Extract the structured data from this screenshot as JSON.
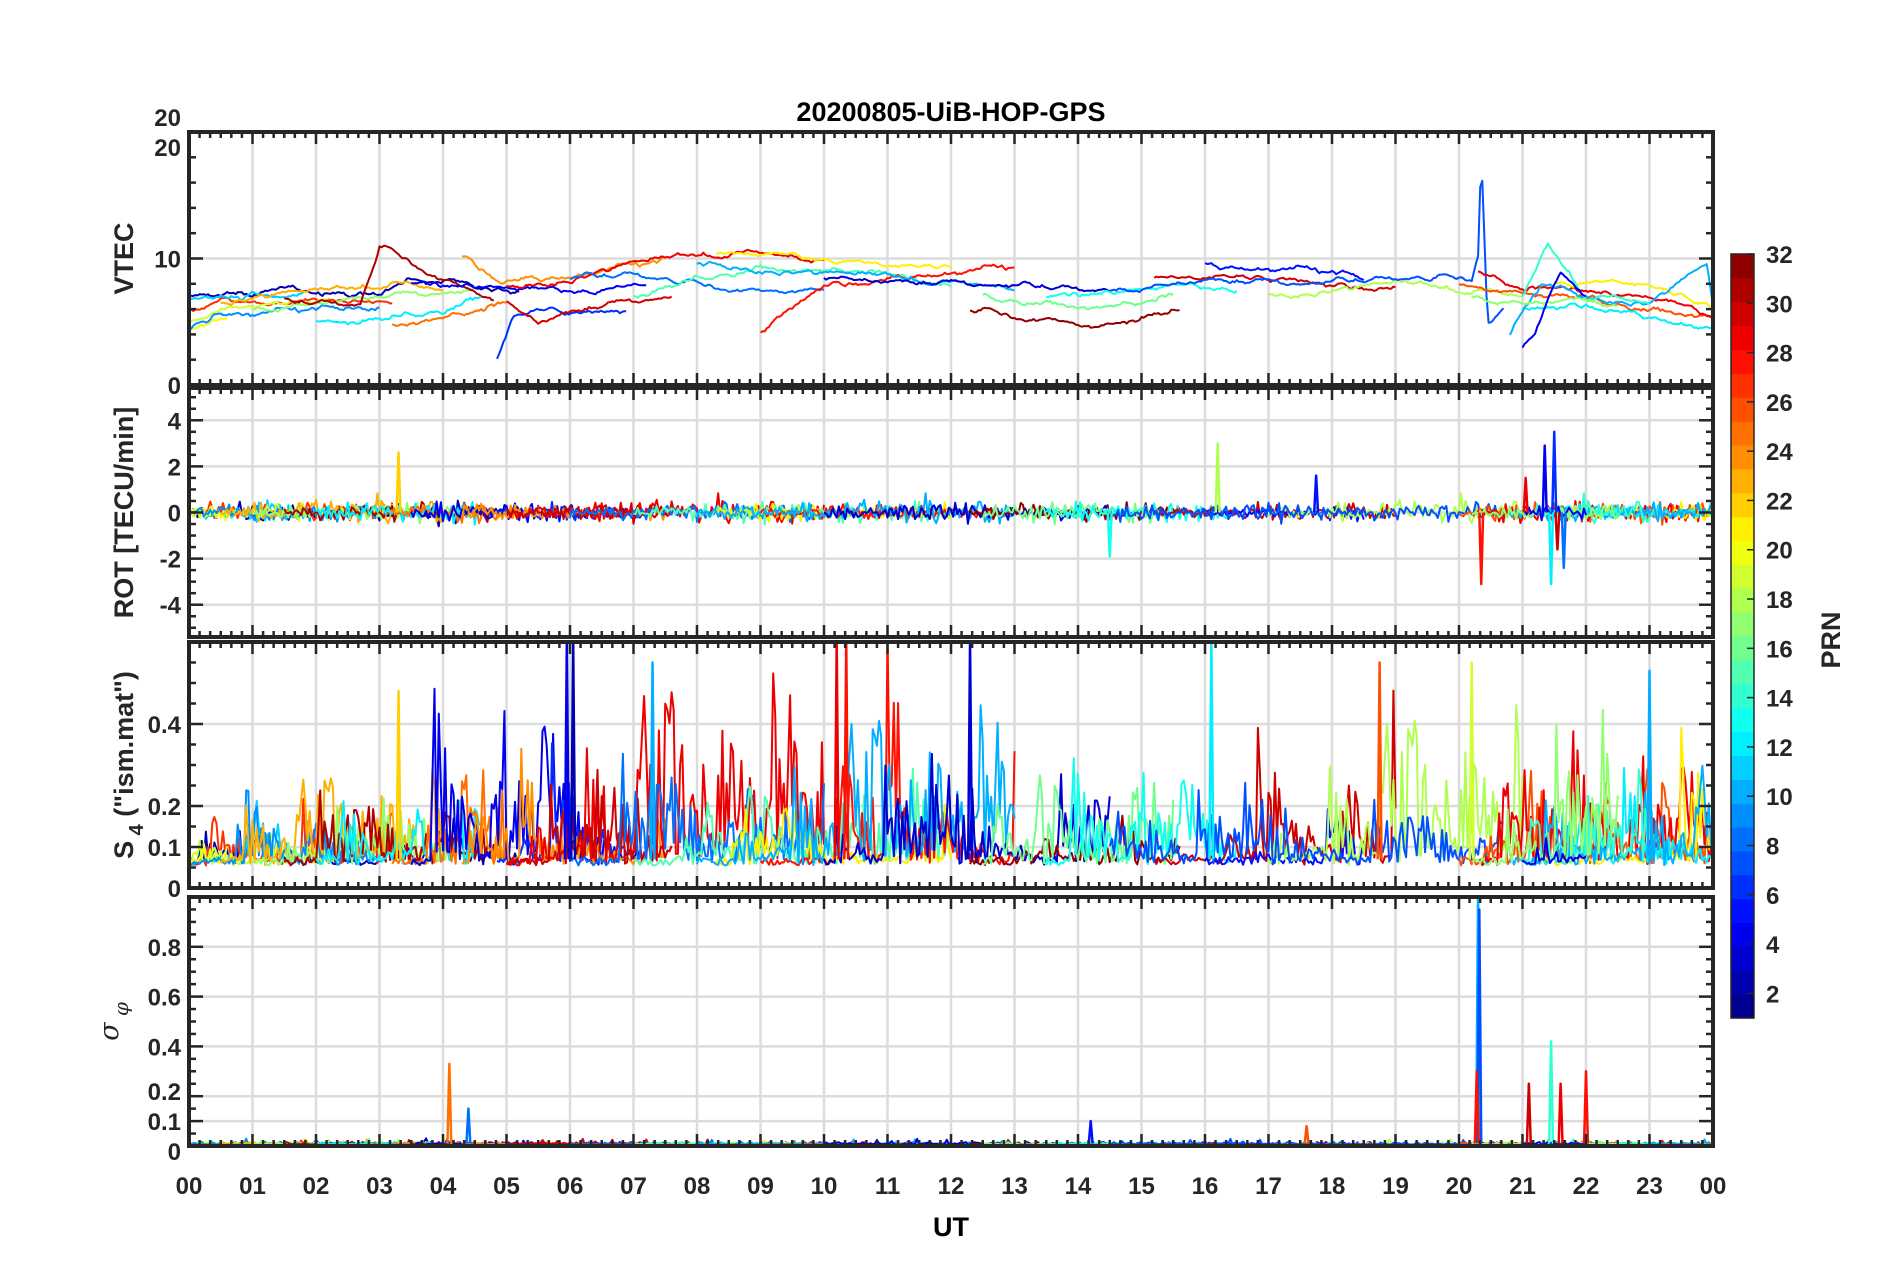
{
  "chart_data": {
    "type": "line",
    "title": "20200805-UiB-HOP-GPS",
    "xlabel": "UT",
    "xlim": [
      0,
      24
    ],
    "x_tick_labels": [
      "00",
      "01",
      "02",
      "03",
      "04",
      "05",
      "06",
      "07",
      "08",
      "09",
      "10",
      "11",
      "12",
      "13",
      "14",
      "15",
      "16",
      "17",
      "18",
      "19",
      "20",
      "21",
      "22",
      "23",
      "00"
    ],
    "grid": true,
    "panels": [
      {
        "id": "vtec",
        "ylabel": "VTEC",
        "ylim": [
          0,
          20
        ],
        "yticks": [
          0,
          10,
          20
        ],
        "ytick_labels": [
          "0",
          "10",
          "20"
        ],
        "yminor": 2
      },
      {
        "id": "rot",
        "ylabel": "ROT [TECU/min]",
        "ylim": [
          -5.4,
          5.4
        ],
        "yticks": [
          -4,
          -2,
          0,
          2,
          4
        ],
        "ytick_labels": [
          "-4",
          "-2",
          "0",
          "2",
          "4"
        ],
        "yminor": 0.5
      },
      {
        "id": "s4",
        "ylabel_main": "S",
        "ylabel_sub": "4",
        "ylabel_rest": " (\"ism.mat\")",
        "ylim": [
          0,
          0.6
        ],
        "yticks": [
          0,
          0.1,
          0.2,
          0.4
        ],
        "ytick_labels": [
          "0",
          "0.1",
          "0.2",
          "0.4"
        ],
        "yminor": 0.05
      },
      {
        "id": "sigma",
        "ylabel_main": "σ",
        "ylabel_sub": "φ",
        "ylim": [
          0,
          1
        ],
        "yticks": [
          0,
          0.1,
          0.2,
          0.4,
          0.6,
          0.8
        ],
        "ytick_labels": [
          "0",
          "0.1",
          "0.2",
          "0.4",
          "0.6",
          "0.8"
        ],
        "yminor": 0.05
      }
    ],
    "colorbar": {
      "label": "PRN",
      "colormap": "jet",
      "clim": [
        1,
        32
      ],
      "ticks": [
        2,
        4,
        6,
        8,
        10,
        12,
        14,
        16,
        18,
        20,
        22,
        24,
        26,
        28,
        30,
        32
      ],
      "tick_labels": [
        "2",
        "4",
        "6",
        "8",
        "10",
        "12",
        "14",
        "16",
        "18",
        "20",
        "22",
        "24",
        "26",
        "28",
        "30",
        "32"
      ]
    },
    "series_note": "Each arc is one satellite pass (PRN); vtec knots are [UT hour, TECU]",
    "arcs": [
      {
        "prn": 2,
        "vtec": [
          [
            0,
            7
          ],
          [
            1,
            7.2
          ],
          [
            2,
            7.4
          ],
          [
            3,
            7.3
          ],
          [
            3.5,
            8
          ],
          [
            4.2,
            8.2
          ],
          [
            5.2,
            7.5
          ]
        ],
        "s4_peak": 0.15
      },
      {
        "prn": 27,
        "vtec": [
          [
            0,
            5.8
          ],
          [
            0.5,
            6.6
          ],
          [
            1,
            6.2
          ],
          [
            2,
            6.8
          ],
          [
            3.2,
            6.8
          ]
        ],
        "s4_peak": 0.2
      },
      {
        "prn": 11,
        "vtec": [
          [
            0,
            6.8
          ],
          [
            0.8,
            7
          ],
          [
            1.8,
            7.3
          ]
        ],
        "s4_peak": 0.15
      },
      {
        "prn": 19,
        "vtec": [
          [
            0,
            5
          ],
          [
            0.6,
            6
          ],
          [
            1.4,
            6.3
          ],
          [
            2.2,
            6.5
          ]
        ],
        "s4_peak": 0.12
      },
      {
        "prn": 20,
        "vtec": [
          [
            0,
            4.5
          ],
          [
            0.6,
            5.5
          ]
        ],
        "s4_peak": 0.12
      },
      {
        "prn": 9,
        "vtec": [
          [
            0,
            4.5
          ],
          [
            0.4,
            5.3
          ],
          [
            1.5,
            5.8
          ],
          [
            3,
            6.3
          ]
        ],
        "s4_peak": 0.2
      },
      {
        "prn": 23,
        "vtec": [
          [
            0.5,
            6.5
          ],
          [
            1.5,
            7.2
          ],
          [
            2.5,
            7.5
          ],
          [
            3.2,
            8
          ],
          [
            4,
            7.5
          ]
        ],
        "s4_peak": 0.3
      },
      {
        "prn": 17,
        "vtec": [
          [
            1,
            6
          ],
          [
            2,
            6.5
          ],
          [
            3,
            7
          ],
          [
            3.8,
            7.2
          ],
          [
            4.5,
            7.5
          ]
        ],
        "s4_peak": 0.2
      },
      {
        "prn": 31,
        "vtec": [
          [
            1.5,
            6.8
          ],
          [
            2.7,
            6.4
          ],
          [
            3,
            11
          ],
          [
            3.5,
            9.8
          ],
          [
            4,
            8.4
          ],
          [
            4.8,
            7
          ]
        ],
        "s4_peak": 0.3
      },
      {
        "prn": 12,
        "vtec": [
          [
            2,
            5
          ],
          [
            3,
            5.3
          ],
          [
            4,
            6
          ],
          [
            4.6,
            7
          ]
        ],
        "s4_peak": 0.2
      },
      {
        "prn": 25,
        "vtec": [
          [
            3.2,
            4.8
          ],
          [
            3.8,
            5.2
          ],
          [
            4.5,
            5.8
          ],
          [
            5,
            6.4
          ]
        ],
        "s4_peak": 0.35
      },
      {
        "prn": 4,
        "vtec": [
          [
            3.5,
            8
          ],
          [
            4.5,
            8
          ],
          [
            5.5,
            7.5
          ],
          [
            6.3,
            7.6
          ],
          [
            7.2,
            8.3
          ]
        ],
        "s4_peak": 0.5
      },
      {
        "prn": 6,
        "vtec": [
          [
            4.85,
            2
          ],
          [
            5.1,
            5.4
          ],
          [
            5.6,
            6
          ],
          [
            6.1,
            5.5
          ],
          [
            6.9,
            6
          ]
        ],
        "s4_peak": 0.4
      },
      {
        "prn": 24,
        "vtec": [
          [
            4.3,
            10.2
          ],
          [
            4.9,
            8.4
          ],
          [
            5.8,
            8.6
          ],
          [
            6.8,
            9.3
          ],
          [
            7.5,
            9.8
          ]
        ],
        "s4_peak": 0.3
      },
      {
        "prn": 29,
        "vtec": [
          [
            5,
            7.8
          ],
          [
            6,
            8.4
          ],
          [
            7,
            9.6
          ],
          [
            8,
            10.2
          ],
          [
            9,
            10.4
          ],
          [
            10,
            10
          ]
        ],
        "s4_peak": 0.6
      },
      {
        "prn": 30,
        "vtec": [
          [
            5,
            6.5
          ],
          [
            5.5,
            5
          ],
          [
            6.2,
            6
          ],
          [
            7,
            6.6
          ],
          [
            7.6,
            7
          ]
        ],
        "s4_peak": 0.3
      },
      {
        "prn": 8,
        "vtec": [
          [
            6,
            8.5
          ],
          [
            7,
            8.8
          ],
          [
            8,
            8
          ],
          [
            9,
            7.5
          ],
          [
            10,
            7.8
          ]
        ],
        "s4_peak": 0.45
      },
      {
        "prn": 15,
        "vtec": [
          [
            7,
            7
          ],
          [
            8,
            8.5
          ],
          [
            9,
            9.3
          ],
          [
            10.5,
            9
          ],
          [
            12,
            8
          ]
        ],
        "s4_peak": 0.25
      },
      {
        "prn": 21,
        "vtec": [
          [
            8.3,
            10.5
          ],
          [
            9.5,
            10.2
          ],
          [
            10.5,
            10
          ],
          [
            11.3,
            9.6
          ],
          [
            12,
            9.2
          ]
        ],
        "s4_peak": 0.2
      },
      {
        "prn": 28,
        "vtec": [
          [
            9,
            4.2
          ],
          [
            9.5,
            6
          ],
          [
            10,
            8
          ],
          [
            11,
            8.5
          ],
          [
            12,
            9
          ],
          [
            13,
            9.3
          ]
        ],
        "s4_peak": 0.6
      },
      {
        "prn": 10,
        "vtec": [
          [
            8,
            9.5
          ],
          [
            9.5,
            9
          ],
          [
            11,
            8.5
          ],
          [
            12,
            8
          ],
          [
            13,
            7.8
          ]
        ],
        "s4_peak": 0.5
      },
      {
        "prn": 3,
        "vtec": [
          [
            10,
            8.5
          ],
          [
            11,
            8.2
          ],
          [
            12,
            8
          ],
          [
            13.5,
            7.8
          ],
          [
            14.5,
            7.5
          ]
        ],
        "s4_peak": 0.35
      },
      {
        "prn": 32,
        "vtec": [
          [
            12.3,
            6
          ],
          [
            13,
            5.5
          ],
          [
            14,
            5
          ],
          [
            14.3,
            4.8
          ],
          [
            15,
            5.5
          ],
          [
            15.6,
            6
          ]
        ],
        "s4_peak": 0.15
      },
      {
        "prn": 16,
        "vtec": [
          [
            12.5,
            7
          ],
          [
            13.5,
            6.5
          ],
          [
            14.3,
            6.2
          ],
          [
            15,
            6.5
          ],
          [
            15.5,
            7
          ]
        ],
        "s4_peak": 0.3
      },
      {
        "prn": 13,
        "vtec": [
          [
            13.5,
            7
          ],
          [
            14.5,
            7.5
          ],
          [
            15.5,
            7.8
          ],
          [
            16.5,
            7.8
          ]
        ],
        "s4_peak": 0.3
      },
      {
        "prn": 30,
        "vtec": [
          [
            15.2,
            8.5
          ],
          [
            16.2,
            8.8
          ],
          [
            17,
            8.3
          ],
          [
            18,
            8
          ],
          [
            19,
            7.8
          ]
        ],
        "s4_peak": 0.45
      },
      {
        "prn": 5,
        "vtec": [
          [
            16,
            9.5
          ],
          [
            17,
            9.3
          ],
          [
            17.8,
            9
          ],
          [
            18.5,
            8.5
          ]
        ],
        "s4_peak": 0.3
      },
      {
        "prn": 18,
        "vtec": [
          [
            17,
            7
          ],
          [
            18,
            7.5
          ],
          [
            19,
            8
          ],
          [
            20,
            7.5
          ],
          [
            21,
            7
          ]
        ],
        "s4_peak": 0.5
      },
      {
        "prn": 7,
        "vtec": [
          [
            14.5,
            7.5
          ],
          [
            16,
            8.3
          ],
          [
            17.5,
            8
          ],
          [
            19,
            8.5
          ],
          [
            20.2,
            8.5
          ],
          [
            20.3,
            10.5
          ],
          [
            20.35,
            18.8
          ],
          [
            20.45,
            5
          ],
          [
            20.7,
            6
          ]
        ],
        "s4_peak": 0.25
      },
      {
        "prn": 26,
        "vtec": [
          [
            20,
            8
          ],
          [
            21,
            7.5
          ],
          [
            22,
            7
          ],
          [
            23,
            6
          ],
          [
            24,
            5.5
          ]
        ],
        "s4_peak": 0.3
      },
      {
        "prn": 29,
        "vtec": [
          [
            20.3,
            9
          ],
          [
            21,
            7.5
          ],
          [
            22,
            7.6
          ],
          [
            23,
            7
          ],
          [
            24,
            5.5
          ]
        ],
        "s4_peak": 0.35
      },
      {
        "prn": 21,
        "vtec": [
          [
            21.5,
            8
          ],
          [
            22.5,
            8.5
          ],
          [
            23,
            8
          ],
          [
            24,
            6
          ]
        ],
        "s4_peak": 0.45
      },
      {
        "prn": 12,
        "vtec": [
          [
            21,
            6
          ],
          [
            22,
            6.5
          ],
          [
            23,
            5.5
          ],
          [
            24,
            4.5
          ]
        ],
        "s4_peak": 0.25
      },
      {
        "prn": 10,
        "vtec": [
          [
            20.8,
            4
          ],
          [
            21.3,
            8
          ],
          [
            22,
            7
          ],
          [
            23,
            6.5
          ],
          [
            23.9,
            9.5
          ],
          [
            24,
            6
          ]
        ],
        "s4_peak": 0.35
      },
      {
        "prn": 14,
        "vtec": [
          [
            21,
            7
          ],
          [
            21.4,
            11
          ],
          [
            22,
            7
          ],
          [
            23,
            6.5
          ]
        ],
        "s4_peak": 0.3
      },
      {
        "prn": 17,
        "vtec": [
          [
            20.2,
            7
          ],
          [
            21,
            6.5
          ],
          [
            22,
            6.8
          ],
          [
            22.5,
            6
          ]
        ],
        "s4_peak": 0.5
      },
      {
        "prn": 4,
        "vtec": [
          [
            21,
            3
          ],
          [
            21.2,
            4
          ],
          [
            21.4,
            7
          ],
          [
            21.6,
            9
          ],
          [
            22,
            7
          ]
        ],
        "s4_peak": 0.25
      }
    ],
    "rot_spikes": [
      {
        "prn": 22,
        "t": 3.3,
        "v": 2.6
      },
      {
        "prn": 18,
        "t": 16.2,
        "v": 3.0
      },
      {
        "prn": 28,
        "t": 20.35,
        "v": -3.1
      },
      {
        "prn": 6,
        "t": 21.5,
        "v": 3.5
      },
      {
        "prn": 12,
        "t": 21.45,
        "v": -3.1
      },
      {
        "prn": 13,
        "t": 14.5,
        "v": -1.9
      },
      {
        "prn": 5,
        "t": 17.75,
        "v": 1.6
      },
      {
        "prn": 8,
        "t": 21.65,
        "v": -2.4
      },
      {
        "prn": 4,
        "t": 21.35,
        "v": 2.9
      },
      {
        "prn": 29,
        "t": 21.05,
        "v": 1.5
      },
      {
        "prn": 30,
        "t": 21.55,
        "v": -1.6
      }
    ],
    "s4_spikes": [
      {
        "prn": 4,
        "t": 5.95,
        "v": 0.6
      },
      {
        "prn": 2,
        "t": 6.05,
        "v": 0.6
      },
      {
        "prn": 29,
        "t": 10.2,
        "v": 0.6
      },
      {
        "prn": 28,
        "t": 10.35,
        "v": 0.6
      },
      {
        "prn": 3,
        "t": 12.3,
        "v": 0.6
      },
      {
        "prn": 12,
        "t": 16.1,
        "v": 0.6
      },
      {
        "prn": 22,
        "t": 3.3,
        "v": 0.48
      },
      {
        "prn": 10,
        "t": 7.3,
        "v": 0.55
      },
      {
        "prn": 26,
        "t": 18.75,
        "v": 0.55
      },
      {
        "prn": 19,
        "t": 20.2,
        "v": 0.55
      },
      {
        "prn": 10,
        "t": 23.0,
        "v": 0.53
      }
    ],
    "sigma_spikes": [
      {
        "prn": 10,
        "t": 20.3,
        "v": 1.0
      },
      {
        "prn": 7,
        "t": 20.32,
        "v": 0.95
      },
      {
        "prn": 25,
        "t": 4.1,
        "v": 0.33
      },
      {
        "prn": 8,
        "t": 4.4,
        "v": 0.15
      },
      {
        "prn": 28,
        "t": 20.28,
        "v": 0.3
      },
      {
        "prn": 30,
        "t": 21.1,
        "v": 0.25
      },
      {
        "prn": 14,
        "t": 21.45,
        "v": 0.42
      },
      {
        "prn": 29,
        "t": 21.6,
        "v": 0.25
      },
      {
        "prn": 28,
        "t": 22.0,
        "v": 0.3
      },
      {
        "prn": 5,
        "t": 14.2,
        "v": 0.1
      },
      {
        "prn": 26,
        "t": 17.6,
        "v": 0.08
      }
    ]
  }
}
